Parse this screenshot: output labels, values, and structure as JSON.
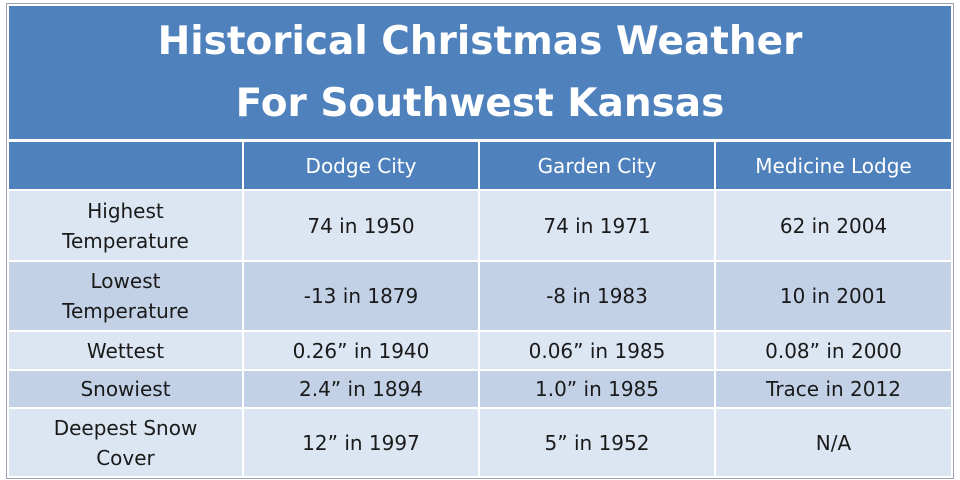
{
  "header": {
    "title_lines": [
      "Historical Christmas Weather",
      "For Southwest Kansas"
    ]
  },
  "table": {
    "columns": [
      "Dodge City",
      "Garden City",
      "Medicine Lodge"
    ],
    "rows": [
      [
        "Highest Temperature",
        "74 in 1950",
        "74 in 1971",
        "62 in 2004"
      ],
      [
        "Lowest Temperature",
        "-13 in 1879",
        "-8 in 1983",
        "10 in 2001"
      ],
      [
        "Wettest",
        "0.26” in 1940",
        "0.06” in 1985",
        "0.08” in 2000"
      ],
      [
        "Snowiest",
        "2.4” in 1894",
        "1.0” in 1985",
        "Trace in 2012"
      ],
      [
        "Deepest Snow Cover",
        "12” in 1997",
        "5” in 1952",
        "N/A"
      ]
    ]
  }
}
